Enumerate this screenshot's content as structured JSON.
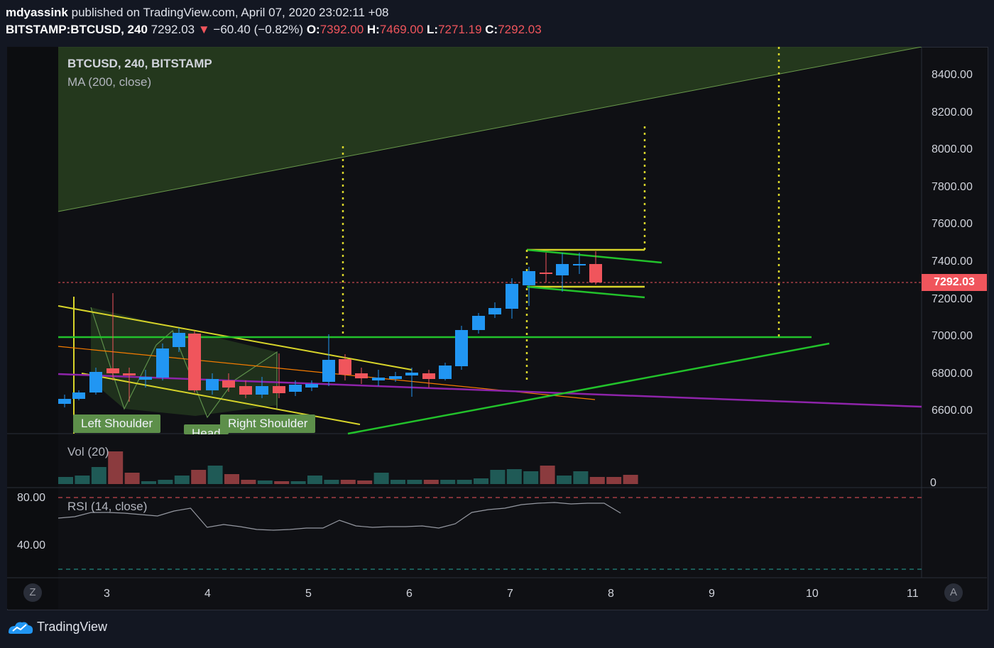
{
  "header": {
    "author": "mdyassink",
    "published": "published on TradingView.com, April 07, 2020 23:02:11 +08",
    "symbol": "BITSTAMP:BTCUSD, 240",
    "last": "7292.03",
    "change_arrow": "▼",
    "change": "−60.40 (−0.82%)",
    "o_label": "O:",
    "o_value": "7392.00",
    "h_label": "H:",
    "h_value": "7469.00",
    "l_label": "L:",
    "l_value": "7271.19",
    "c_label": "C:",
    "c_value": "7292.03"
  },
  "main_pane": {
    "legend_symbol": "BTCUSD, 240, BITSTAMP",
    "legend_ma": "MA (200, close)",
    "price_ticks": [
      "8400.00",
      "8200.00",
      "8000.00",
      "7800.00",
      "7600.00",
      "7400.00",
      "7200.00",
      "7000.00",
      "6800.00",
      "6600.00"
    ],
    "last_price_badge": "7292.03",
    "annotations": {
      "left_shoulder": "Left Shoulder",
      "head": "Head",
      "right_shoulder": "Right Shoulder"
    }
  },
  "volume_pane": {
    "legend": "Vol (20)",
    "axis_zero": "0"
  },
  "rsi_pane": {
    "legend": "RSI (14, close)",
    "tick_80": "80.00",
    "tick_40": "40.00"
  },
  "time_axis": {
    "ticks": [
      "3",
      "4",
      "5",
      "6",
      "7",
      "8",
      "9",
      "10",
      "11"
    ]
  },
  "buttons": {
    "left": "Z",
    "right": "A"
  },
  "footer": {
    "brand": "TradingView"
  },
  "colors": {
    "up": "#2196f3",
    "down": "#f0555c",
    "background": "#0f1014",
    "green_line": "#22c22b",
    "yellow_line": "#d7d42a",
    "ma": "#8e24aa",
    "orange": "#f57c00"
  },
  "icons": [
    "tradingview-logo-icon",
    "down-arrow-icon"
  ]
}
